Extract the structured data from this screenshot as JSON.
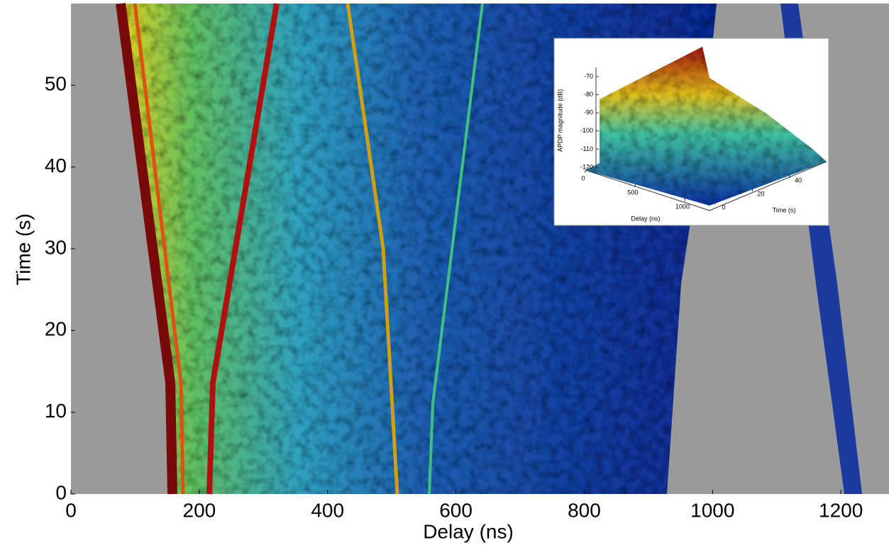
{
  "chart_data": [
    {
      "type": "heatmap",
      "xlabel": "Delay (ns)",
      "ylabel": "Time (s)",
      "xlim": [
        0,
        1275
      ],
      "ylim": [
        0,
        60
      ],
      "xticks": [
        0,
        200,
        400,
        600,
        800,
        1000,
        1200
      ],
      "yticks": [
        0,
        10,
        20,
        30,
        40,
        50
      ]
    },
    {
      "type": "surface3d",
      "xlabel": "Delay (ns)",
      "ylabel": "Time (s)",
      "zlabel": "APDP magnitude (dB)",
      "xticks": [
        0,
        500,
        1000
      ],
      "yticks": [
        0,
        20,
        40
      ],
      "zticks": [
        -70,
        -80,
        -90,
        -100,
        -110,
        -120
      ]
    }
  ]
}
